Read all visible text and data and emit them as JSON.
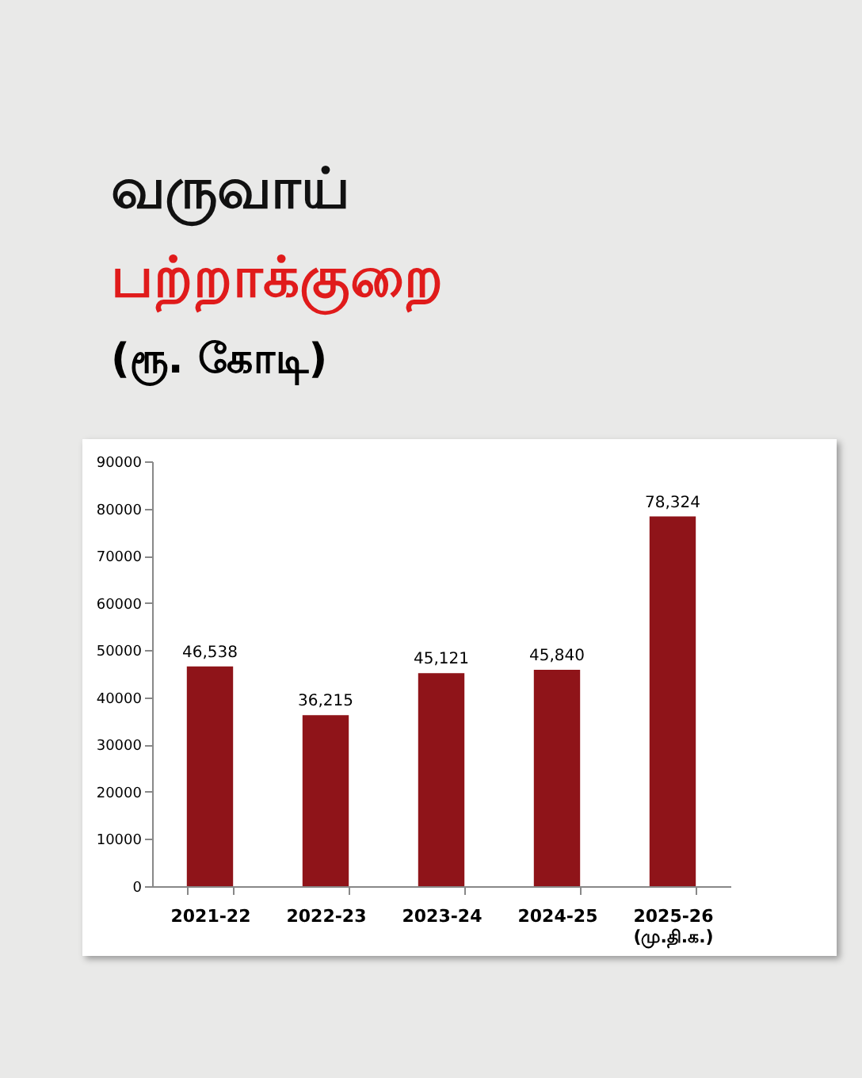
{
  "chart_data": {
    "type": "bar",
    "title": "வருவாய்\nபற்றாக்குறை",
    "subtitle": "(ரூ. கோடி)",
    "categories": [
      "2021-22",
      "2022-23",
      "2023-24",
      "2024-25",
      "2025-26\n(மு.தி.க.)"
    ],
    "values": [
      46538,
      36215,
      45121,
      45840,
      78324
    ],
    "value_labels": [
      "46,538",
      "36,215",
      "45,121",
      "45,840",
      "78,324"
    ],
    "color": "#8f1419",
    "ylim": [
      0,
      90000
    ],
    "yticks": [
      0,
      10000,
      20000,
      30000,
      40000,
      50000,
      60000,
      70000,
      80000,
      90000
    ],
    "grid": false,
    "legend": false
  }
}
